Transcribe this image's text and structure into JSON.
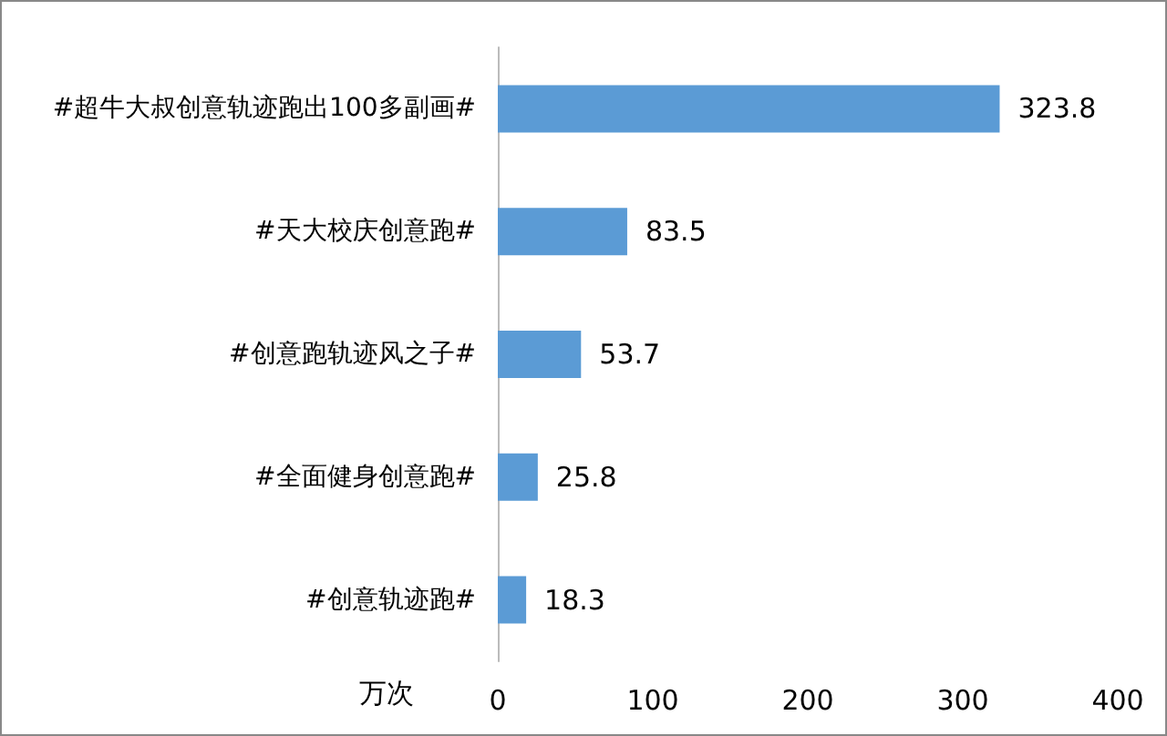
{
  "chart_data": {
    "type": "bar",
    "orientation": "horizontal",
    "xlabel": "万次",
    "categories": [
      "#超牛大叔创意轨迹跑出100多副画#",
      "#天大校庆创意跑#",
      "#创意跑轨迹风之子#",
      "#全面健身创意跑#",
      "#创意轨迹跑#"
    ],
    "values": [
      323.8,
      83.5,
      53.7,
      25.8,
      18.3
    ],
    "color": "#5b9bd5",
    "xlim": [
      0,
      400
    ],
    "xticks": [
      0,
      100,
      200,
      300,
      400
    ],
    "data_labels": true,
    "grid": false
  }
}
